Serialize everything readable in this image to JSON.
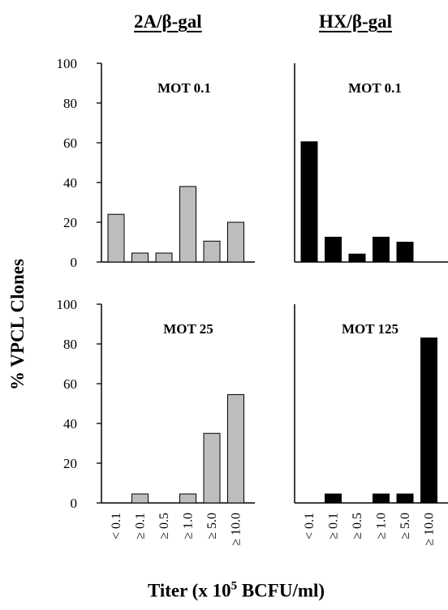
{
  "column_titles": [
    "2A/β-gal",
    "HX/β-gal"
  ],
  "y_axis_label": "% VPCL Clones",
  "x_axis_label": {
    "prefix": "Titer (x 10",
    "superscript": "5",
    "suffix": " BCFU/ml)"
  },
  "colors": {
    "gray_bar": "#bdbdbd",
    "black_bar": "#000000",
    "axis": "#000000"
  },
  "chart_data": [
    {
      "type": "bar",
      "panel": "top-left",
      "title": "MOT 0.1",
      "categories": [
        "< 0.1",
        "≥ 0.1",
        "≥ 0.5",
        "≥ 1.0",
        "≥ 5.0",
        "≥ 10.0"
      ],
      "values": [
        24,
        4.5,
        4.5,
        38,
        10.5,
        20
      ],
      "ylim": [
        0,
        100
      ],
      "yticks": [
        0,
        20,
        40,
        60,
        80,
        100
      ],
      "bar_color": "gray"
    },
    {
      "type": "bar",
      "panel": "top-right",
      "title": "MOT 0.1",
      "categories": [
        "< 0.1",
        "≥ 0.1",
        "≥ 0.5",
        "≥ 1.0",
        "≥ 5.0",
        "≥ 10.0"
      ],
      "values": [
        60.5,
        12.5,
        4,
        12.5,
        10,
        0
      ],
      "ylim": [
        0,
        100
      ],
      "bar_color": "black"
    },
    {
      "type": "bar",
      "panel": "bottom-left",
      "title": "MOT 25",
      "categories": [
        "< 0.1",
        "≥ 0.1",
        "≥ 0.5",
        "≥ 1.0",
        "≥ 5.0",
        "≥ 10.0"
      ],
      "values": [
        0,
        4.5,
        0,
        4.5,
        35,
        54.5
      ],
      "ylim": [
        0,
        100
      ],
      "yticks": [
        0,
        20,
        40,
        60,
        80,
        100
      ],
      "bar_color": "gray"
    },
    {
      "type": "bar",
      "panel": "bottom-right",
      "title": "MOT 125",
      "categories": [
        "< 0.1",
        "≥ 0.1",
        "≥ 0.5",
        "≥ 1.0",
        "≥ 5.0",
        "≥ 10.0"
      ],
      "values": [
        0,
        4.5,
        0,
        4.5,
        4.5,
        83
      ],
      "ylim": [
        0,
        100
      ],
      "bar_color": "black"
    }
  ]
}
